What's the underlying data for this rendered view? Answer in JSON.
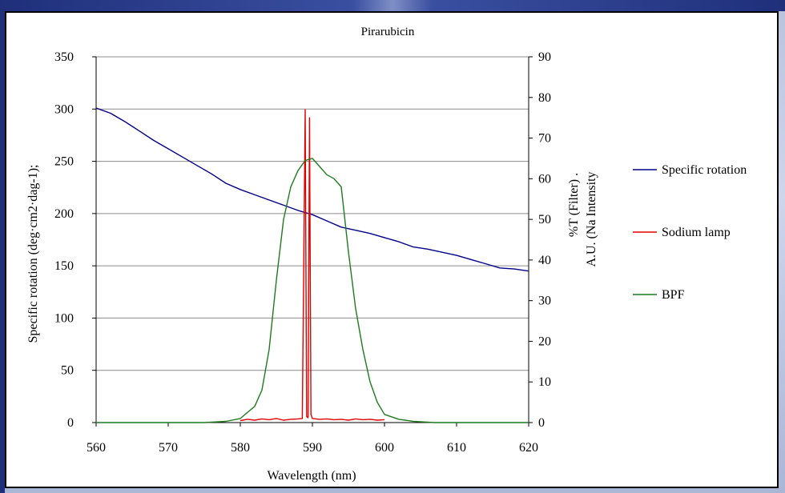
{
  "chart_data": {
    "type": "line",
    "title": "Pirarubicin",
    "xlabel": "Wavelength (nm)",
    "ylabel_left": "Specific rotation (deg·cm2·dag-1);",
    "ylabel_right_line1": "%T (Filter) .",
    "ylabel_right_line2": "A.U. (Na Intensity",
    "xlim": [
      560,
      620
    ],
    "ylim_left": [
      0,
      350
    ],
    "ylim_right": [
      0,
      90
    ],
    "x_ticks": [
      "560",
      "570",
      "580",
      "590",
      "600",
      "610",
      "620"
    ],
    "y_left_ticks": [
      "0",
      "50",
      "100",
      "150",
      "200",
      "250",
      "300",
      "350"
    ],
    "y_right_ticks": [
      "0",
      "10",
      "20",
      "30",
      "40",
      "50",
      "60",
      "70",
      "80",
      "90"
    ],
    "grid": "horizontal",
    "legend_position": "right",
    "series": [
      {
        "name": "Specific rotation",
        "axis": "left",
        "color": "#00008b",
        "x": [
          560,
          562,
          564,
          566,
          568,
          570,
          572,
          574,
          576,
          578,
          580,
          582,
          584,
          586,
          588,
          590,
          592,
          594,
          596,
          598,
          600,
          602,
          604,
          606,
          608,
          610,
          612,
          614,
          616,
          618,
          620
        ],
        "values": [
          301,
          296,
          288,
          279,
          270,
          262,
          254,
          246,
          238,
          229,
          223,
          218,
          213,
          208,
          203,
          199,
          193,
          187,
          184,
          181,
          177,
          173,
          168,
          166,
          163,
          160,
          156,
          152,
          148,
          147,
          145
        ]
      },
      {
        "name": "Sodium lamp",
        "axis": "right",
        "color": "#e00000",
        "x": [
          580,
          581,
          582,
          583,
          584,
          585,
          586,
          587,
          588,
          588.6,
          589.0,
          589.2,
          589.4,
          589.6,
          589.8,
          590.0,
          591,
          592,
          593,
          594,
          595,
          596,
          597,
          598,
          599,
          600
        ],
        "values": [
          0.5,
          0.8,
          0.6,
          0.9,
          0.7,
          1.0,
          0.6,
          0.8,
          0.9,
          1.0,
          77,
          1.5,
          1.2,
          75,
          2,
          1.0,
          0.8,
          0.9,
          0.7,
          0.8,
          0.6,
          0.9,
          0.7,
          0.8,
          0.6,
          0.7
        ]
      },
      {
        "name": "BPF",
        "axis": "right",
        "color": "#1f7a1f",
        "x": [
          560,
          575,
          578,
          580,
          582,
          583,
          584,
          585,
          586,
          587,
          588,
          589,
          590,
          591,
          592,
          593,
          594,
          595,
          596,
          597,
          598,
          599,
          600,
          602,
          604,
          606,
          607,
          620
        ],
        "values": [
          0,
          0,
          0.3,
          1.0,
          4,
          8,
          18,
          35,
          50,
          58,
          62,
          64.5,
          65,
          63,
          61,
          60,
          58,
          42,
          28,
          18,
          10,
          5,
          2,
          0.8,
          0.3,
          0.1,
          0,
          0
        ]
      }
    ]
  }
}
